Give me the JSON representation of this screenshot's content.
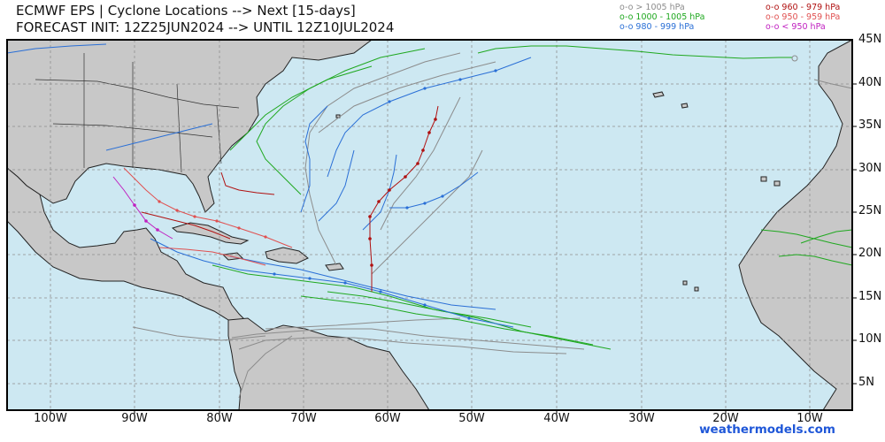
{
  "header": {
    "title_line1": "ECMWF EPS | Cyclone Locations --> Next [15-days]",
    "title_line2": "FORECAST INIT: 12Z25JUN2024 --> UNTIL 12Z10JUL2024"
  },
  "legend": [
    {
      "label": "o-o > 1005 hPa",
      "color": "#8c8c8c"
    },
    {
      "label": "o-o 1000 - 1005 hPa",
      "color": "#1fa81f"
    },
    {
      "label": "o-o 980 - 999 hPa",
      "color": "#2a6fd6"
    },
    {
      "label": "o-o 960 - 979 hPa",
      "color": "#b01010"
    },
    {
      "label": "o-o 950 - 959 hPa",
      "color": "#e05050"
    },
    {
      "label": "o-o < 950 hPa",
      "color": "#c020c0"
    }
  ],
  "axes": {
    "lat_labels": [
      "45N",
      "40N",
      "35N",
      "30N",
      "25N",
      "20N",
      "15N",
      "10N",
      "5N"
    ],
    "lon_labels": [
      "100W",
      "90W",
      "80W",
      "70W",
      "60W",
      "50W",
      "40W",
      "30W",
      "20W",
      "10W"
    ]
  },
  "credit": "weathermodels.com",
  "colors": {
    "ocean": "#cde8f2",
    "land": "#c8c8c8",
    "grid": "#8f8f8f"
  }
}
